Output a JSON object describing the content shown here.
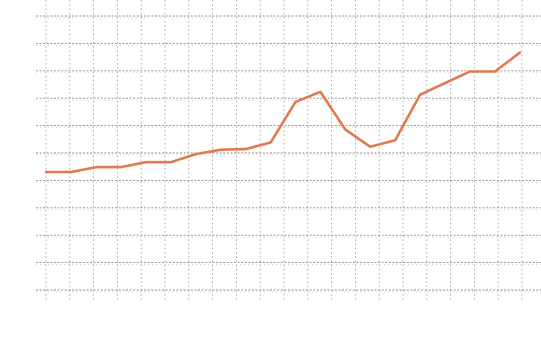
{
  "chart_data": {
    "type": "line",
    "title": "",
    "xlabel": "",
    "ylabel": "",
    "x": [
      0,
      1,
      2,
      3,
      4,
      5,
      6,
      7,
      8,
      9,
      10,
      11,
      12,
      13,
      14,
      15,
      16,
      17,
      18,
      19
    ],
    "series": [
      {
        "name": "",
        "color": "#e07a4f",
        "values": [
          0.28,
          0.28,
          0.45,
          0.45,
          0.62,
          0.62,
          0.9,
          1.05,
          1.07,
          1.3,
          2.7,
          3.05,
          1.75,
          1.15,
          1.38,
          2.95,
          3.35,
          3.75,
          3.75,
          4.4
        ]
      }
    ],
    "xlim": [
      -0.25,
      19.85
    ],
    "ylim": [
      -4.07,
      6.22
    ],
    "grid": true,
    "legend": "none"
  }
}
